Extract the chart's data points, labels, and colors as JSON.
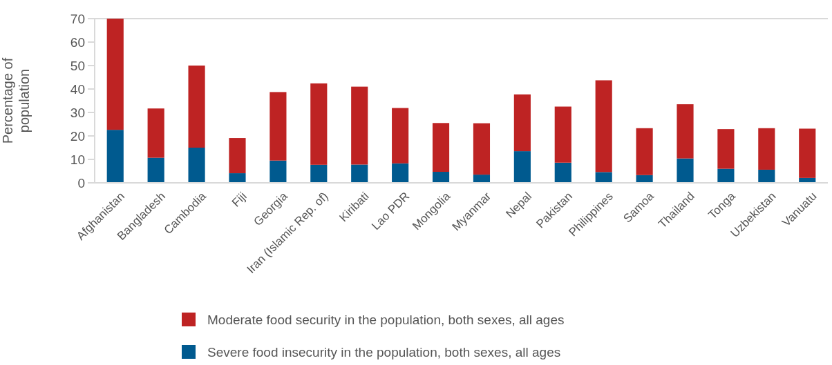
{
  "chart_data": {
    "type": "bar",
    "stacked": true,
    "ylabel": "Percentage of population",
    "categories": [
      "Afghanistan",
      "Bangladesh",
      "Cambodia",
      "Fiji",
      "Georgia",
      "Iran (Islamic Rep. of)",
      "Kiribati",
      "Lao PDR",
      "Mongolia",
      "Myanmar",
      "Nepal",
      "Pakistan",
      "Philippines",
      "Samoa",
      "Thailand",
      "Tonga",
      "Uzbekistan",
      "Vanuatu"
    ],
    "series": [
      {
        "name": "Severe food insecurity in the population, both sexes, all ages",
        "color": "#005a8f",
        "values": [
          22.6,
          10.7,
          15.0,
          4.1,
          9.5,
          7.7,
          7.8,
          8.3,
          4.7,
          3.5,
          13.5,
          8.6,
          4.6,
          3.3,
          10.4,
          6.0,
          5.6,
          2.1
        ]
      },
      {
        "name": "Moderate food security in the population, both sexes, all ages",
        "color": "#be2323",
        "values": [
          47.4,
          21.0,
          35.0,
          15.0,
          29.2,
          34.7,
          33.2,
          23.6,
          20.8,
          21.9,
          24.2,
          23.9,
          39.1,
          20.0,
          23.1,
          16.9,
          17.7,
          21.0
        ]
      }
    ],
    "ylim": [
      0,
      70
    ],
    "yticks": [
      0,
      10,
      20,
      30,
      40,
      50,
      60,
      70
    ],
    "legend": "bottom"
  }
}
